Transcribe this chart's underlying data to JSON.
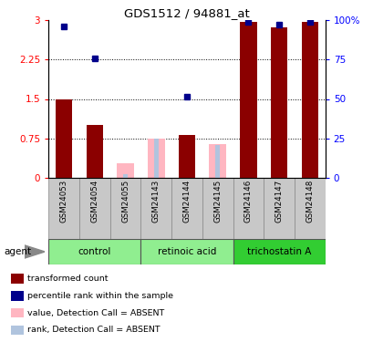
{
  "title": "GDS1512 / 94881_at",
  "samples": [
    "GSM24053",
    "GSM24054",
    "GSM24055",
    "GSM24143",
    "GSM24144",
    "GSM24145",
    "GSM24146",
    "GSM24147",
    "GSM24148"
  ],
  "transformed_count": [
    1.49,
    1.0,
    null,
    null,
    0.82,
    null,
    2.97,
    2.86,
    2.97
  ],
  "percentile_rank": [
    2.88,
    2.27,
    null,
    null,
    1.55,
    null,
    2.97,
    2.92,
    2.96
  ],
  "absent_value": [
    null,
    null,
    0.28,
    0.75,
    null,
    0.65,
    null,
    null,
    null
  ],
  "absent_rank": [
    null,
    null,
    0.07,
    0.75,
    null,
    0.62,
    null,
    null,
    null
  ],
  "ylim_left": [
    0,
    3
  ],
  "yticks_left": [
    0,
    0.75,
    1.5,
    2.25,
    3
  ],
  "ytick_labels_left": [
    "0",
    "0.75",
    "1.5",
    "2.25",
    "3"
  ],
  "yticks_right_val": [
    0,
    0.75,
    1.5,
    2.25,
    3
  ],
  "ytick_labels_right": [
    "0",
    "25",
    "50",
    "75",
    "100%"
  ],
  "bar_color_present": "#8B0000",
  "bar_color_absent": "#FFB6C1",
  "dot_color_present": "#00008B",
  "dot_color_absent": "#B0C4DE",
  "group_spans": [
    {
      "label": "control",
      "start": 0,
      "end": 2,
      "color": "#90EE90"
    },
    {
      "label": "retinoic acid",
      "start": 3,
      "end": 5,
      "color": "#90EE90"
    },
    {
      "label": "trichostatin A",
      "start": 6,
      "end": 8,
      "color": "#32CD32"
    }
  ],
  "legend_items": [
    {
      "label": "transformed count",
      "color": "#8B0000"
    },
    {
      "label": "percentile rank within the sample",
      "color": "#00008B"
    },
    {
      "label": "value, Detection Call = ABSENT",
      "color": "#FFB6C1"
    },
    {
      "label": "rank, Detection Call = ABSENT",
      "color": "#B0C4DE"
    }
  ],
  "agent_label": "agent",
  "sample_bg": "#C8C8C8",
  "fig_width": 4.1,
  "fig_height": 3.75,
  "dpi": 100
}
